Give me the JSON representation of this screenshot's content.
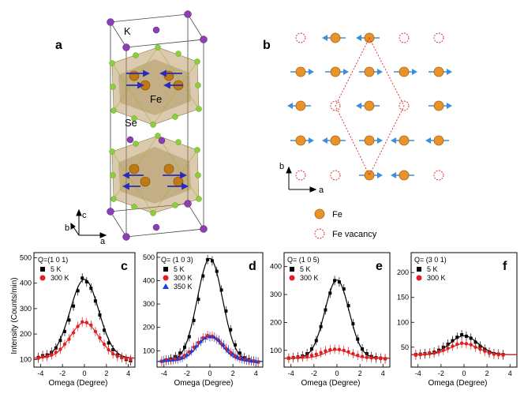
{
  "panel_a": {
    "letter": "a",
    "labels": {
      "k": "K",
      "fe": "Fe",
      "se": "Se"
    },
    "axes": {
      "a": "a",
      "b": "b",
      "c": "c"
    }
  },
  "panel_b": {
    "letter": "b",
    "axes": {
      "a": "a",
      "b": "b"
    },
    "legend": [
      {
        "symbol": "fe-atom-icon",
        "label": "Fe"
      },
      {
        "symbol": "fe-vacancy-icon",
        "label": "Fe vacancy"
      }
    ]
  },
  "colors": {
    "k_atom": "#8a3fb5",
    "se_atom": "#8ccf3c",
    "fe_atom": "#c07a14",
    "spin_arrow": "#3c8fd6",
    "vacancy": "#e02020",
    "series_5k": "#000000",
    "series_300k": "#e02020",
    "series_350k": "#1a3fd8"
  },
  "shared_axis": {
    "ylabel": "Intensity (Counts/min)",
    "xlabel": "Omega (Degree)"
  },
  "chart_data": [
    {
      "id": "c",
      "type": "scatter",
      "title": "Q=(1 0 1)",
      "xlabel": "Omega (Degree)",
      "ylabel": "Intensity (Counts/min)",
      "xlim": [
        -4.6,
        4.6
      ],
      "ylim": [
        70,
        520
      ],
      "xticks": [
        -4,
        -2,
        0,
        2,
        4
      ],
      "yticks": [
        100,
        200,
        300,
        400,
        500
      ],
      "series": [
        {
          "name": "5 K",
          "marker": "square",
          "color": "#000000",
          "fit": {
            "amplitude": 310,
            "center": 0.0,
            "sigma": 1.3,
            "baseline": 105
          },
          "x": [
            -4.2,
            -3.8,
            -3.4,
            -3.0,
            -2.6,
            -2.2,
            -1.8,
            -1.4,
            -1.0,
            -0.6,
            -0.2,
            0.2,
            0.6,
            1.0,
            1.4,
            1.8,
            2.2,
            2.6,
            3.0,
            3.4,
            3.8,
            4.2
          ],
          "y": [
            108,
            115,
            118,
            128,
            145,
            175,
            210,
            255,
            310,
            370,
            420,
            405,
            380,
            330,
            275,
            215,
            165,
            138,
            118,
            108,
            100,
            95
          ]
        },
        {
          "name": "300 K",
          "marker": "circle",
          "color": "#e02020",
          "fit": {
            "amplitude": 140,
            "center": 0.0,
            "sigma": 1.3,
            "baseline": 105
          },
          "x": [
            -4.2,
            -3.8,
            -3.4,
            -3.0,
            -2.6,
            -2.2,
            -1.8,
            -1.4,
            -1.0,
            -0.6,
            -0.2,
            0.2,
            0.6,
            1.0,
            1.4,
            1.8,
            2.2,
            2.6,
            3.0,
            3.4,
            3.8,
            4.2
          ],
          "y": [
            105,
            110,
            112,
            118,
            128,
            140,
            160,
            180,
            205,
            230,
            248,
            245,
            235,
            210,
            185,
            160,
            138,
            122,
            112,
            108,
            103,
            100
          ]
        }
      ]
    },
    {
      "id": "d",
      "type": "scatter",
      "title": "Q= (1 0 3)",
      "xlabel": "Omega (Degree)",
      "ylabel": "",
      "xlim": [
        -4.6,
        4.6
      ],
      "ylim": [
        30,
        520
      ],
      "xticks": [
        -4,
        -2,
        0,
        2,
        4
      ],
      "yticks": [
        100,
        200,
        300,
        400,
        500
      ],
      "series": [
        {
          "name": "5 K",
          "marker": "square",
          "color": "#000000",
          "fit": {
            "amplitude": 440,
            "center": 0.0,
            "sigma": 1.1,
            "baseline": 55
          },
          "x": [
            -4.2,
            -3.8,
            -3.4,
            -3.0,
            -2.6,
            -2.2,
            -1.8,
            -1.4,
            -1.0,
            -0.6,
            -0.2,
            0.2,
            0.6,
            1.0,
            1.4,
            1.8,
            2.2,
            2.6,
            3.0,
            3.4,
            3.8,
            4.2
          ],
          "y": [
            55,
            60,
            65,
            75,
            90,
            115,
            160,
            230,
            320,
            420,
            490,
            485,
            440,
            360,
            270,
            190,
            125,
            90,
            70,
            62,
            56,
            52
          ]
        },
        {
          "name": "300 K",
          "marker": "circle",
          "color": "#e02020",
          "fit": {
            "amplitude": 110,
            "center": 0.0,
            "sigma": 1.1,
            "baseline": 55
          },
          "x": [
            -4.2,
            -3.8,
            -3.4,
            -3.0,
            -2.6,
            -2.2,
            -1.8,
            -1.4,
            -1.0,
            -0.6,
            -0.2,
            0.2,
            0.6,
            1.0,
            1.4,
            1.8,
            2.2,
            2.6,
            3.0,
            3.4,
            3.8,
            4.2
          ],
          "y": [
            55,
            58,
            60,
            64,
            70,
            80,
            95,
            115,
            135,
            155,
            165,
            162,
            150,
            130,
            110,
            92,
            78,
            68,
            62,
            58,
            55,
            52
          ]
        },
        {
          "name": "350 K",
          "marker": "triangle",
          "color": "#1a3fd8",
          "fit": {
            "amplitude": 105,
            "center": 0.0,
            "sigma": 1.1,
            "baseline": 55
          },
          "x": [
            -4.0,
            -3.6,
            -3.2,
            -2.8,
            -2.4,
            -2.0,
            -1.6,
            -1.2,
            -0.8,
            -0.4,
            0.0,
            0.4,
            0.8,
            1.2,
            1.6,
            2.0,
            2.4,
            2.8,
            3.2,
            3.6,
            4.0
          ],
          "y": [
            58,
            60,
            62,
            65,
            72,
            85,
            100,
            120,
            140,
            155,
            160,
            158,
            145,
            125,
            105,
            88,
            75,
            66,
            60,
            56,
            54
          ]
        }
      ]
    },
    {
      "id": "e",
      "type": "scatter",
      "title": "Q= (1 0 5)",
      "xlabel": "Omega (Degree)",
      "ylabel": "",
      "xlim": [
        -4.6,
        4.6
      ],
      "ylim": [
        40,
        450
      ],
      "xticks": [
        -4,
        -2,
        0,
        2,
        4
      ],
      "yticks": [
        100,
        200,
        300,
        400
      ],
      "series": [
        {
          "name": "5 K",
          "marker": "square",
          "color": "#000000",
          "fit": {
            "amplitude": 280,
            "center": 0.0,
            "sigma": 1.05,
            "baseline": 72
          },
          "x": [
            -4.2,
            -3.8,
            -3.4,
            -3.0,
            -2.6,
            -2.2,
            -1.8,
            -1.4,
            -1.0,
            -0.6,
            -0.2,
            0.2,
            0.6,
            1.0,
            1.4,
            1.8,
            2.2,
            2.6,
            3.0,
            3.4,
            3.8,
            4.2
          ],
          "y": [
            72,
            74,
            76,
            80,
            88,
            105,
            135,
            185,
            245,
            305,
            350,
            345,
            320,
            260,
            195,
            140,
            105,
            88,
            78,
            74,
            72,
            70
          ]
        },
        {
          "name": "300 K",
          "marker": "circle",
          "color": "#e02020",
          "fit": {
            "amplitude": 30,
            "center": 0.0,
            "sigma": 1.05,
            "baseline": 72
          },
          "x": [
            -4.2,
            -3.8,
            -3.4,
            -3.0,
            -2.6,
            -2.2,
            -1.8,
            -1.4,
            -1.0,
            -0.6,
            -0.2,
            0.2,
            0.6,
            1.0,
            1.4,
            1.8,
            2.2,
            2.6,
            3.0,
            3.4,
            3.8,
            4.2
          ],
          "y": [
            72,
            73,
            74,
            76,
            78,
            82,
            86,
            92,
            98,
            102,
            104,
            103,
            100,
            95,
            88,
            82,
            78,
            75,
            73,
            72,
            71,
            70
          ]
        }
      ]
    },
    {
      "id": "f",
      "type": "scatter",
      "title": "Q= (3 0 1)",
      "xlabel": "Omega (Degree)",
      "ylabel": "",
      "xlim": [
        -4.6,
        4.6
      ],
      "ylim": [
        10,
        240
      ],
      "xticks": [
        -4,
        -2,
        0,
        2,
        4
      ],
      "yticks": [
        50,
        100,
        150,
        200
      ],
      "series": [
        {
          "name": "5 K",
          "marker": "square",
          "color": "#000000",
          "fit": {
            "amplitude": 38,
            "center": 0.0,
            "sigma": 1.2,
            "baseline": 35
          },
          "x": [
            -4.2,
            -3.8,
            -3.4,
            -3.0,
            -2.6,
            -2.2,
            -1.8,
            -1.4,
            -1.0,
            -0.6,
            -0.2,
            0.2,
            0.6,
            1.0,
            1.4,
            1.8,
            2.2,
            2.6,
            3.0,
            3.4
          ],
          "y": [
            35,
            36,
            37,
            38,
            40,
            44,
            50,
            56,
            63,
            70,
            75,
            72,
            68,
            60,
            52,
            46,
            40,
            37,
            36,
            35
          ]
        },
        {
          "name": "300 K",
          "marker": "circle",
          "color": "#e02020",
          "fit": {
            "amplitude": 22,
            "center": 0.0,
            "sigma": 1.2,
            "baseline": 35
          },
          "x": [
            -4.2,
            -3.8,
            -3.4,
            -3.0,
            -2.6,
            -2.2,
            -1.8,
            -1.4,
            -1.0,
            -0.6,
            -0.2,
            0.2,
            0.6,
            1.0,
            1.4,
            1.8,
            2.2,
            2.6,
            3.0,
            3.4
          ],
          "y": [
            34,
            35,
            36,
            37,
            38,
            41,
            44,
            48,
            52,
            56,
            58,
            57,
            55,
            50,
            46,
            42,
            38,
            36,
            35,
            34
          ]
        }
      ]
    }
  ]
}
